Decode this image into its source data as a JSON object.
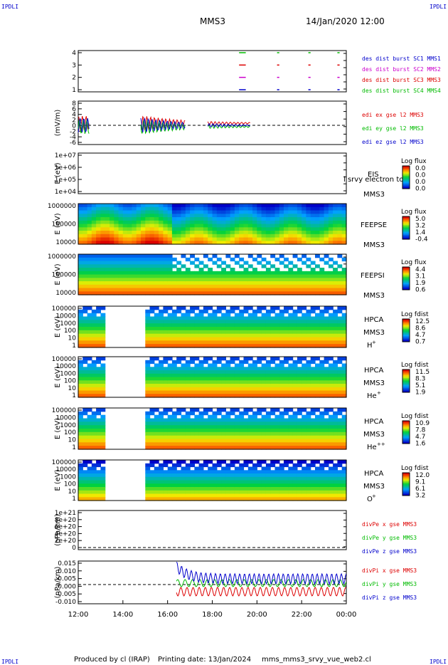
{
  "corner_label": "IPDLI",
  "header": {
    "spacecraft": "MMS3",
    "datetime": "14/Jan/2020 12:00"
  },
  "footer": {
    "produced": "Produced by cl (IRAP)",
    "printing": "Printing date: 13/Jan/2024",
    "file": "mms_mms3_srvy_vue_web2.cl"
  },
  "colors": {
    "red": "#dd0000",
    "green": "#00bb00",
    "blue": "#0000cc",
    "magenta": "#cc00cc"
  },
  "chart_data": {
    "type": "multi-panel",
    "x_ticks": [
      "12:00",
      "14:00",
      "16:00",
      "18:00",
      "20:00",
      "22:00",
      "00:00"
    ],
    "panels": [
      {
        "id": "burst",
        "type": "scatter",
        "ylabel": "",
        "yticks": [
          "4",
          "3",
          "2",
          "1"
        ],
        "series": [
          {
            "name": "des dist burst SC1 MMS1",
            "color": "#0000cc",
            "y": 1,
            "segments": [
              [
                19.2,
                19.5
              ],
              [
                20.9,
                21.0
              ],
              [
                22.3,
                22.4
              ],
              [
                23.6,
                23.7
              ]
            ]
          },
          {
            "name": "des dist burst SC2 MMS2",
            "color": "#cc00cc",
            "y": 2,
            "segments": [
              [
                19.2,
                19.5
              ],
              [
                20.9,
                21.0
              ],
              [
                22.3,
                22.4
              ],
              [
                23.6,
                23.7
              ]
            ]
          },
          {
            "name": "des dist burst SC3 MMS3",
            "color": "#dd0000",
            "y": 3,
            "segments": [
              [
                19.2,
                19.5
              ],
              [
                20.9,
                21.0
              ],
              [
                22.3,
                22.4
              ],
              [
                23.6,
                23.7
              ]
            ]
          },
          {
            "name": "des dist burst SC4 MMS4",
            "color": "#00bb00",
            "y": 4,
            "segments": [
              [
                19.2,
                19.5
              ],
              [
                20.9,
                21.0
              ],
              [
                22.3,
                22.4
              ],
              [
                23.6,
                23.7
              ]
            ]
          }
        ]
      },
      {
        "id": "edi",
        "type": "line",
        "ylabel": "(mV/m)",
        "yticks": [
          "8",
          "6",
          "4",
          "2",
          "0",
          "-2",
          "-4",
          "-6"
        ],
        "series": [
          {
            "name": "edi ex gse l2 MMS3",
            "color": "#dd0000"
          },
          {
            "name": "edi ey gse l2 MMS3",
            "color": "#00bb00"
          },
          {
            "name": "edi ez gse l2 MMS3",
            "color": "#0000cc"
          }
        ]
      },
      {
        "id": "eis",
        "type": "heatmap",
        "ylabel": "E (eV)",
        "yticks": [
          "1e+07",
          "1e+06",
          "1e+05",
          "1e+04"
        ],
        "label": "EIS",
        "sublabel": "MMS3",
        "overlay": "l srvy electron to",
        "cbar_title": "Log flux",
        "cbar_ticks": [
          "0.0",
          "0.0",
          "0.0",
          "0.0"
        ]
      },
      {
        "id": "feepse",
        "type": "heatmap",
        "ylabel": "E (eV)",
        "yticks": [
          "1000000",
          "100000",
          "10000"
        ],
        "label": "FEEPSE",
        "sublabel": "MMS3",
        "cbar_title": "Log flux",
        "cbar_ticks": [
          "5.0",
          "3.2",
          "1.4",
          "-0.4"
        ]
      },
      {
        "id": "feepsi",
        "type": "heatmap",
        "ylabel": "E (eV)",
        "yticks": [
          "1000000",
          "100000",
          "10000"
        ],
        "label": "FEEPSI",
        "sublabel": "MMS3",
        "cbar_title": "Log flux",
        "cbar_ticks": [
          "4.4",
          "3.1",
          "1.9",
          "0.6"
        ]
      },
      {
        "id": "hpca_h",
        "type": "heatmap",
        "ylabel": "E (eV)",
        "yticks": [
          "100000",
          "10000",
          "1000",
          "100",
          "10",
          "1"
        ],
        "label": "HPCA",
        "sublabel": "MMS3",
        "species": "H",
        "sup": "+",
        "cbar_title": "Log fdist",
        "cbar_ticks": [
          "12.5",
          "8.6",
          "4.7",
          "0.7"
        ]
      },
      {
        "id": "hpca_he",
        "type": "heatmap",
        "ylabel": "E (eV)",
        "yticks": [
          "100000",
          "10000",
          "1000",
          "100",
          "10",
          "1"
        ],
        "label": "HPCA",
        "sublabel": "MMS3",
        "species": "He",
        "sup": "+",
        "cbar_title": "Log fdist",
        "cbar_ticks": [
          "11.5",
          "8.3",
          "5.1",
          "1.9"
        ]
      },
      {
        "id": "hpca_hepp",
        "type": "heatmap",
        "ylabel": "E (eV)",
        "yticks": [
          "100000",
          "10000",
          "1000",
          "100",
          "10",
          "1"
        ],
        "label": "HPCA",
        "sublabel": "MMS3",
        "species": "He",
        "sup": "++",
        "cbar_title": "Log fdist",
        "cbar_ticks": [
          "10.9",
          "7.8",
          "4.7",
          "1.6"
        ]
      },
      {
        "id": "hpca_o",
        "type": "heatmap",
        "ylabel": "E (eV)",
        "yticks": [
          "100000",
          "10000",
          "1000",
          "100",
          "10",
          "1"
        ],
        "label": "HPCA",
        "sublabel": "MMS3",
        "species": "O",
        "sup": "+",
        "cbar_title": "Log fdist",
        "cbar_ticks": [
          "12.0",
          "9.1",
          "6.1",
          "3.2"
        ]
      },
      {
        "id": "divpe",
        "type": "line",
        "ylabel": "(nPa/km)",
        "yticks": [
          "1e+21",
          "8e+20",
          "6e+20",
          "4e+20",
          "2e+20",
          "0"
        ],
        "series": [
          {
            "name": "divPe x gse MMS3",
            "color": "#dd0000"
          },
          {
            "name": "divPe y gse MMS3",
            "color": "#00bb00"
          },
          {
            "name": "divPe z gse MMS3",
            "color": "#0000cc"
          }
        ]
      },
      {
        "id": "divpi",
        "type": "line",
        "ylabel": "(nPa/km)",
        "yticks": [
          "0.015",
          "0.010",
          "0.005",
          "0.000",
          "-0.005",
          "-0.010"
        ],
        "series": [
          {
            "name": "divPi x gse MMS3",
            "color": "#dd0000"
          },
          {
            "name": "divPi y gse MMS3",
            "color": "#00bb00"
          },
          {
            "name": "divPi z gse MMS3",
            "color": "#0000cc"
          }
        ]
      }
    ]
  }
}
